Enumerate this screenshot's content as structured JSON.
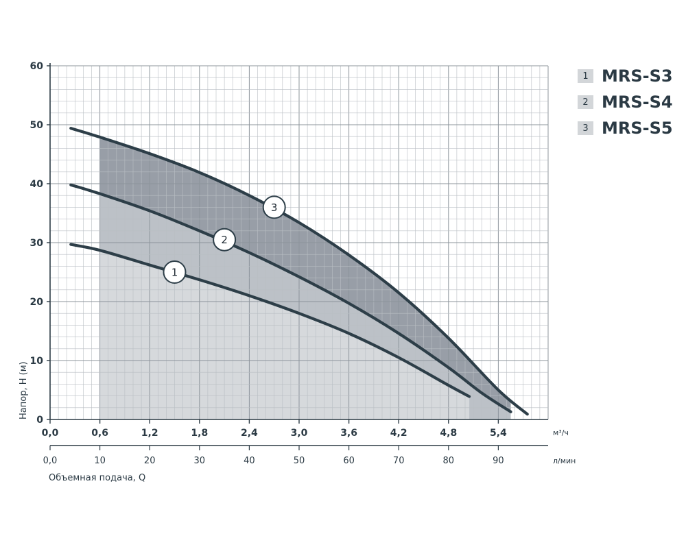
{
  "chart_data": {
    "type": "line",
    "title": "",
    "ylabel": "Напор, H (м)",
    "xlabel": "Объемная подача, Q",
    "xunit_top": "м³/ч",
    "xunit_bottom": "л/мин",
    "ylim": [
      0,
      60
    ],
    "xlim_m3h": [
      0,
      6.0
    ],
    "yticks": [
      "0",
      "10",
      "20",
      "30",
      "40",
      "50",
      "60"
    ],
    "xticks_m3h": [
      "0,0",
      "0,6",
      "1,2",
      "1,8",
      "2,4",
      "3,0",
      "3,6",
      "4,2",
      "4,8",
      "5,4"
    ],
    "xticks_lmin": [
      "0,0",
      "10",
      "20",
      "30",
      "40",
      "50",
      "60",
      "70",
      "80",
      "90"
    ],
    "grid": true,
    "legend_position": "top-right",
    "series": [
      {
        "name": "MRS-S3",
        "marker": "1",
        "color": "#2d3e48",
        "x": [
          0.25,
          0.6,
          1.2,
          1.8,
          2.4,
          3.0,
          3.6,
          4.2,
          4.8,
          5.05
        ],
        "y": [
          29.7,
          28.7,
          26.2,
          23.7,
          21.0,
          18.0,
          14.6,
          10.5,
          5.8,
          3.9
        ]
      },
      {
        "name": "MRS-S4",
        "marker": "2",
        "color": "#2d3e48",
        "x": [
          0.25,
          0.6,
          1.2,
          1.8,
          2.4,
          3.0,
          3.6,
          4.2,
          4.8,
          5.2,
          5.55
        ],
        "y": [
          39.8,
          38.3,
          35.4,
          32.0,
          28.3,
          24.2,
          19.7,
          14.6,
          8.8,
          4.5,
          1.3
        ]
      },
      {
        "name": "MRS-S5",
        "marker": "3",
        "color": "#2d3e48",
        "x": [
          0.25,
          0.6,
          1.2,
          1.8,
          2.4,
          3.0,
          3.6,
          4.2,
          4.8,
          5.4,
          5.75
        ],
        "y": [
          49.4,
          47.9,
          45.1,
          41.9,
          38.0,
          33.4,
          27.9,
          21.5,
          13.8,
          5.0,
          0.9
        ]
      }
    ],
    "shaded_range_m3h": [
      0.6,
      5.55
    ],
    "markers": [
      {
        "label": "1",
        "x": 1.5,
        "y": 25.0
      },
      {
        "label": "2",
        "x": 2.1,
        "y": 30.5
      },
      {
        "label": "3",
        "x": 2.7,
        "y": 36.0
      }
    ]
  },
  "legend": {
    "items": [
      {
        "num": "1",
        "name": "MRS-S3"
      },
      {
        "num": "2",
        "name": "MRS-S4"
      },
      {
        "num": "3",
        "name": "MRS-S5"
      }
    ]
  }
}
